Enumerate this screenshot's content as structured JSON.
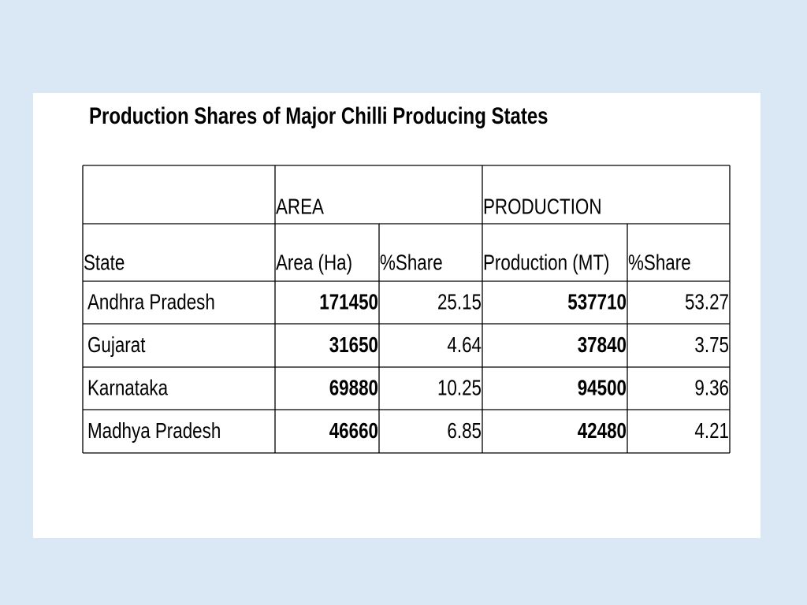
{
  "title": "Production Shares of Major Chilli Producing States",
  "table": {
    "group_headers": [
      "AREA",
      "PRODUCTION"
    ],
    "columns": [
      "State",
      "Area (Ha)",
      "%Share",
      "Production (MT)",
      "%Share"
    ],
    "rows": [
      [
        "Andhra Pradesh",
        171450,
        25.15,
        537710,
        53.27
      ],
      [
        "Gujarat",
        31650,
        4.64,
        37840,
        3.75
      ],
      [
        "Karnataka",
        69880,
        10.25,
        94500,
        9.36
      ],
      [
        "Madhya Pradesh",
        46660,
        6.85,
        42480,
        4.21
      ]
    ]
  }
}
